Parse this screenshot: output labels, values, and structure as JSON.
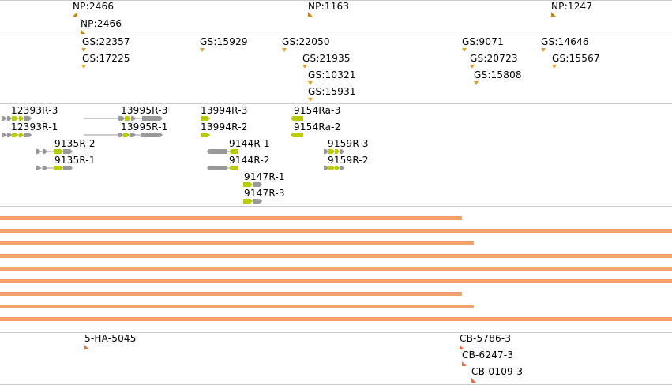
{
  "colors": {
    "divider": "#cccccc",
    "np_marker": "#c8860d",
    "gs_marker": "#e5a02a",
    "gene_gray": "#999999",
    "gene_exon": "#b8cc00",
    "alignment_bar": "#f2a26b",
    "cb_marker": "#e8704a"
  },
  "np_track": {
    "items": [
      {
        "label": "NP:2466",
        "strand": "left"
      },
      {
        "label": "NP:2466",
        "strand": "right"
      },
      {
        "label": "NP:1163",
        "strand": "right"
      },
      {
        "label": "NP:1247",
        "strand": "right"
      }
    ]
  },
  "gs_track": {
    "items": [
      {
        "label": "GS:22357"
      },
      {
        "label": "GS:17225"
      },
      {
        "label": "GS:15929"
      },
      {
        "label": "GS:22050"
      },
      {
        "label": "GS:21935"
      },
      {
        "label": "GS:10321"
      },
      {
        "label": "GS:15931"
      },
      {
        "label": "GS:9071"
      },
      {
        "label": "GS:20723"
      },
      {
        "label": "GS:15808"
      },
      {
        "label": "GS:14646"
      },
      {
        "label": "GS:15567"
      }
    ]
  },
  "gene_track": {
    "genes": [
      {
        "label": "12393R-3"
      },
      {
        "label": "12393R-1"
      },
      {
        "label": "13995R-3"
      },
      {
        "label": "13995R-1"
      },
      {
        "label": "9135R-2"
      },
      {
        "label": "9135R-1"
      },
      {
        "label": "13994R-3"
      },
      {
        "label": "13994R-2"
      },
      {
        "label": "9144R-1"
      },
      {
        "label": "9144R-2"
      },
      {
        "label": "9147R-1"
      },
      {
        "label": "9147R-3"
      },
      {
        "label": "9154Ra-3"
      },
      {
        "label": "9154Ra-2"
      },
      {
        "label": "9159R-3"
      },
      {
        "label": "9159R-2"
      }
    ]
  },
  "alignment_track": {
    "bar_count": 9
  },
  "cb_track": {
    "items": [
      {
        "label": "5-HA-5045"
      },
      {
        "label": "CB-5786-3"
      },
      {
        "label": "CB-6247-3"
      },
      {
        "label": "CB-0109-3"
      }
    ]
  }
}
